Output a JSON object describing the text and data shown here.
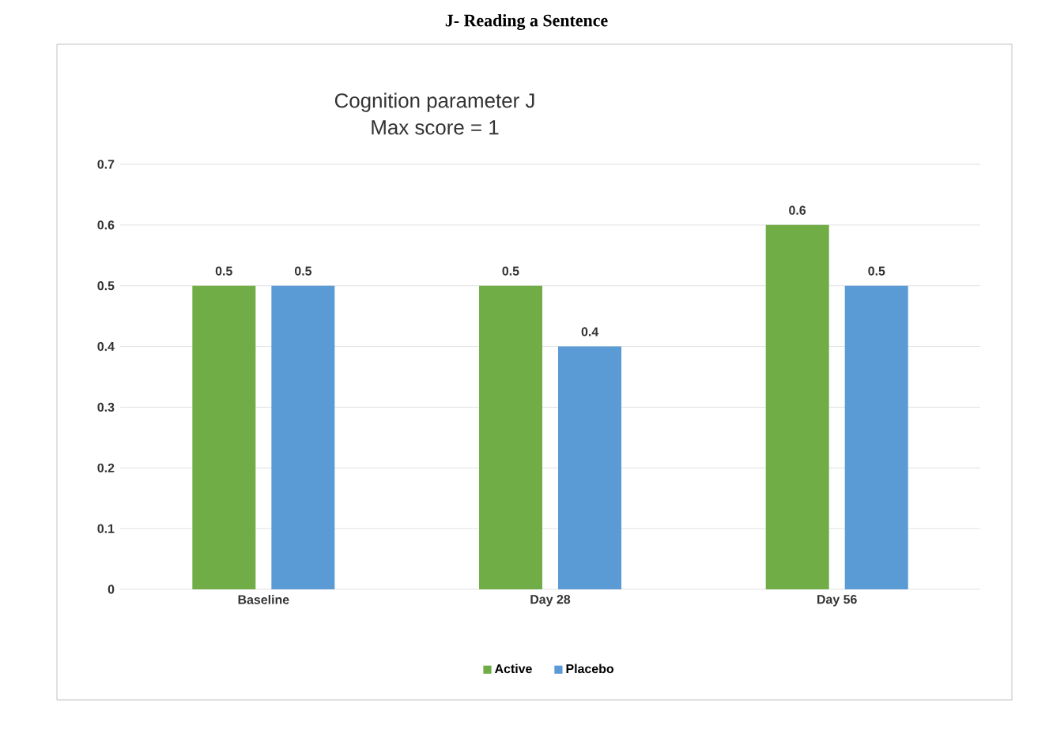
{
  "chart_data": {
    "type": "bar",
    "title": "J- Reading a Sentence",
    "subtitle": "Cognition parameter J\nMax score = 1",
    "categories": [
      "Baseline",
      "Day 28",
      "Day 56"
    ],
    "series": [
      {
        "name": "Active",
        "color": "#70ad47",
        "values": [
          0.5,
          0.5,
          0.6
        ]
      },
      {
        "name": "Placebo",
        "color": "#5b9bd5",
        "values": [
          0.5,
          0.4,
          0.5
        ]
      }
    ],
    "ylim": [
      0,
      0.7
    ],
    "yticks": [
      0,
      0.1,
      0.2,
      0.3,
      0.4,
      0.5,
      0.6,
      0.7
    ],
    "grid": "y",
    "legend": "bottom",
    "data_labels": true
  }
}
